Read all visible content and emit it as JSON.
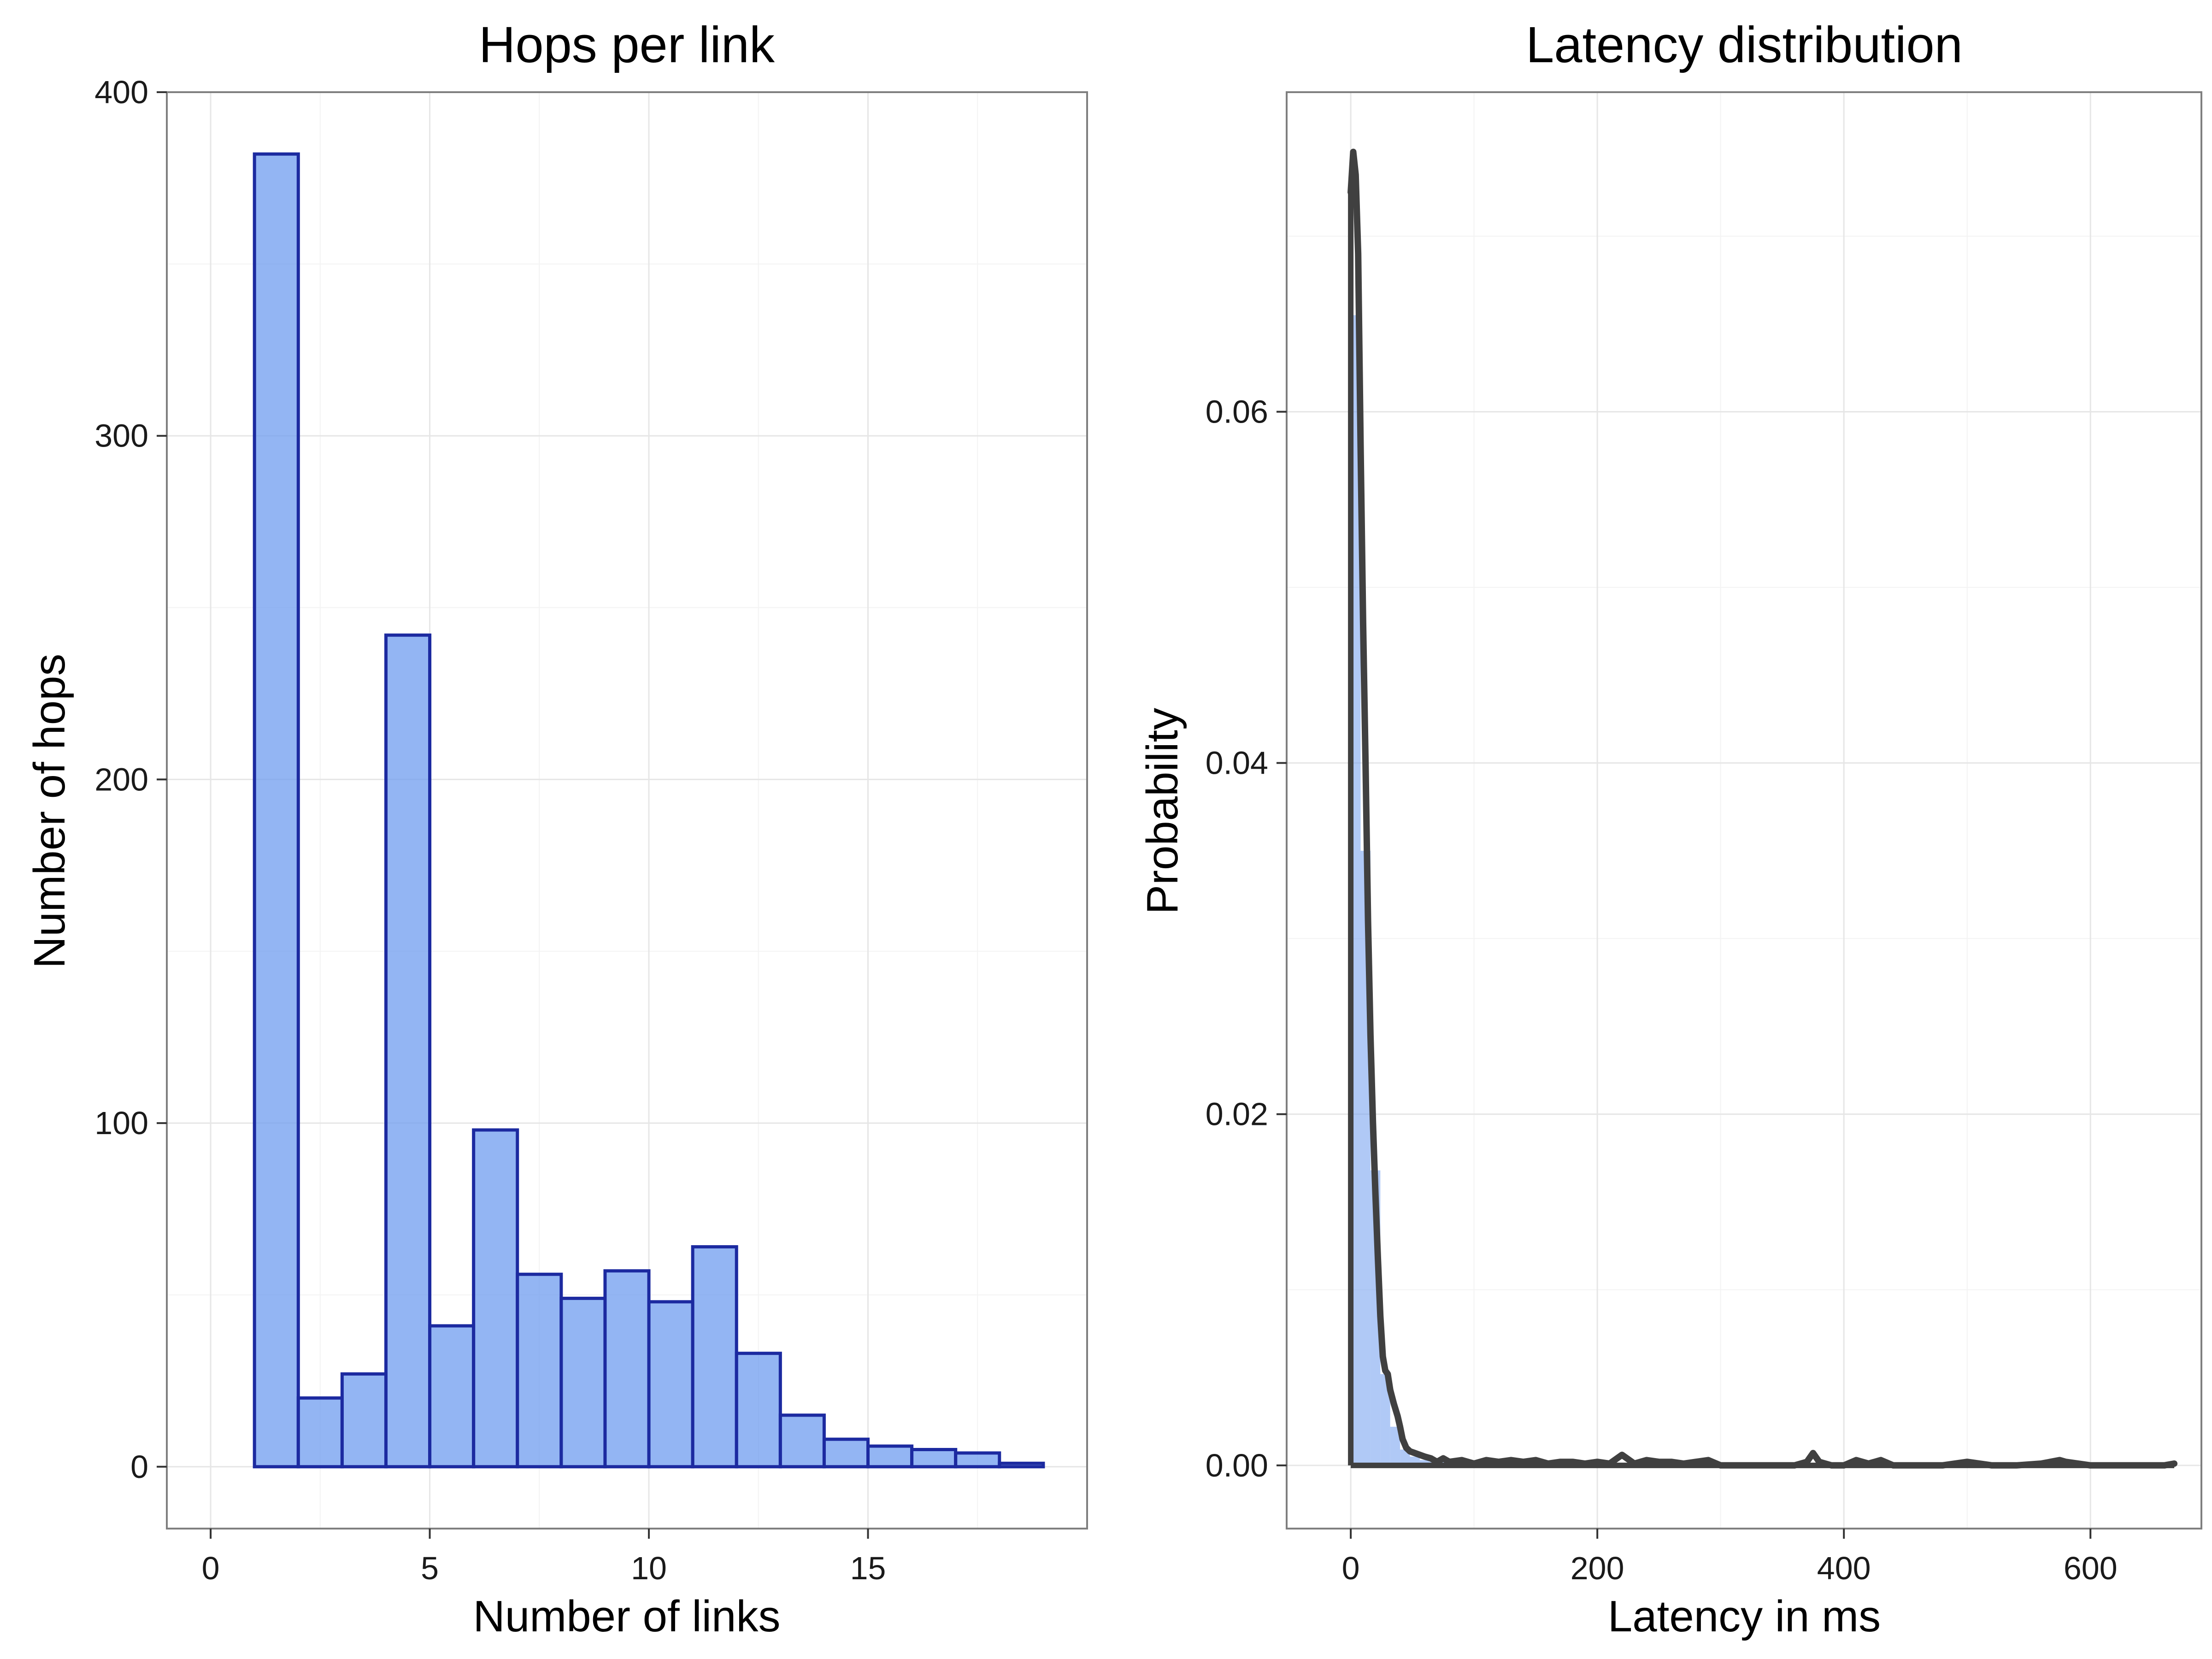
{
  "chart_data": [
    {
      "type": "bar",
      "title": "Hops per link",
      "xlabel": "Number of links",
      "ylabel": "Number of hops",
      "xlim": [
        -1,
        20
      ],
      "ylim": [
        -18,
        400
      ],
      "x_ticks": [
        0,
        5,
        10,
        15
      ],
      "y_ticks": [
        0,
        100,
        200,
        300,
        400
      ],
      "grid": true,
      "bin_width": 1,
      "bin_starts": [
        0,
        1,
        2,
        3,
        4,
        5,
        6,
        7,
        8,
        9,
        10,
        11,
        12,
        13,
        14,
        15,
        16,
        17,
        18
      ],
      "values": [
        0,
        382,
        20,
        27,
        242,
        41,
        98,
        56,
        49,
        57,
        48,
        64,
        33,
        15,
        8,
        6,
        5,
        4,
        1
      ],
      "fill_color": "#6f9cef",
      "fill_opacity": 0.75,
      "stroke_color": "#1c2aa0"
    },
    {
      "type": "area",
      "title": "Latency distribution",
      "xlabel": "Latency in ms",
      "ylabel": "Probability",
      "xlim": [
        -52,
        690
      ],
      "ylim": [
        -0.0036,
        0.0782
      ],
      "x_ticks": [
        0,
        200,
        400,
        600
      ],
      "y_ticks": [
        0.0,
        0.02,
        0.04,
        0.06
      ],
      "grid": true,
      "series": [
        {
          "name": "",
          "type": "histogram",
          "bin_width": 8,
          "bin_starts": [
            0,
            8,
            16,
            24,
            32,
            40,
            48,
            56,
            64,
            72,
            80,
            88
          ],
          "values": [
            0.0655,
            0.035,
            0.0168,
            0.0052,
            0.0022,
            0.0009,
            0.0005,
            0.0003,
            0.0002,
            0.0002,
            0.0001,
            0.0001
          ],
          "color": "#6f9cef"
        },
        {
          "name": "",
          "type": "density",
          "x": [
            0,
            2,
            4,
            6,
            8,
            10,
            12,
            14,
            16,
            18,
            20,
            22,
            24,
            26,
            28,
            30,
            32,
            35,
            38,
            40,
            42,
            45,
            48,
            52,
            56,
            60,
            65,
            70,
            75,
            80,
            90,
            100,
            110,
            120,
            130,
            140,
            150,
            160,
            170,
            180,
            190,
            200,
            210,
            220,
            230,
            240,
            250,
            260,
            270,
            280,
            290,
            300,
            320,
            340,
            360,
            370,
            375,
            380,
            390,
            400,
            410,
            420,
            430,
            440,
            460,
            480,
            500,
            520,
            540,
            560,
            575,
            580,
            600,
            620,
            640,
            660,
            668
          ],
          "y": [
            0.0725,
            0.0748,
            0.0735,
            0.069,
            0.058,
            0.048,
            0.04,
            0.031,
            0.0245,
            0.0195,
            0.0155,
            0.0118,
            0.0085,
            0.0062,
            0.0054,
            0.0052,
            0.0043,
            0.0035,
            0.0028,
            0.0022,
            0.0015,
            0.001,
            0.0008,
            0.0007,
            0.0006,
            0.0005,
            0.0004,
            0.0002,
            0.0004,
            0.0002,
            0.0003,
            0.0001,
            0.0003,
            0.0002,
            0.0003,
            0.0002,
            0.0003,
            0.0001,
            0.0002,
            0.0002,
            0.0001,
            0.0002,
            0.0001,
            0.0006,
            0.0001,
            0.0003,
            0.0002,
            0.0002,
            0.0001,
            0.0002,
            0.0003,
            0.0,
            0.0,
            0.0,
            0.0,
            0.0002,
            0.0007,
            0.0002,
            0.0,
            0.0,
            0.0003,
            0.0001,
            0.0003,
            0.0,
            0.0,
            0.0,
            0.0002,
            0.0,
            0.0,
            0.0001,
            0.0003,
            0.0002,
            0.0,
            0.0,
            0.0,
            0.0,
            0.0001
          ],
          "color": "#404040"
        }
      ]
    }
  ]
}
